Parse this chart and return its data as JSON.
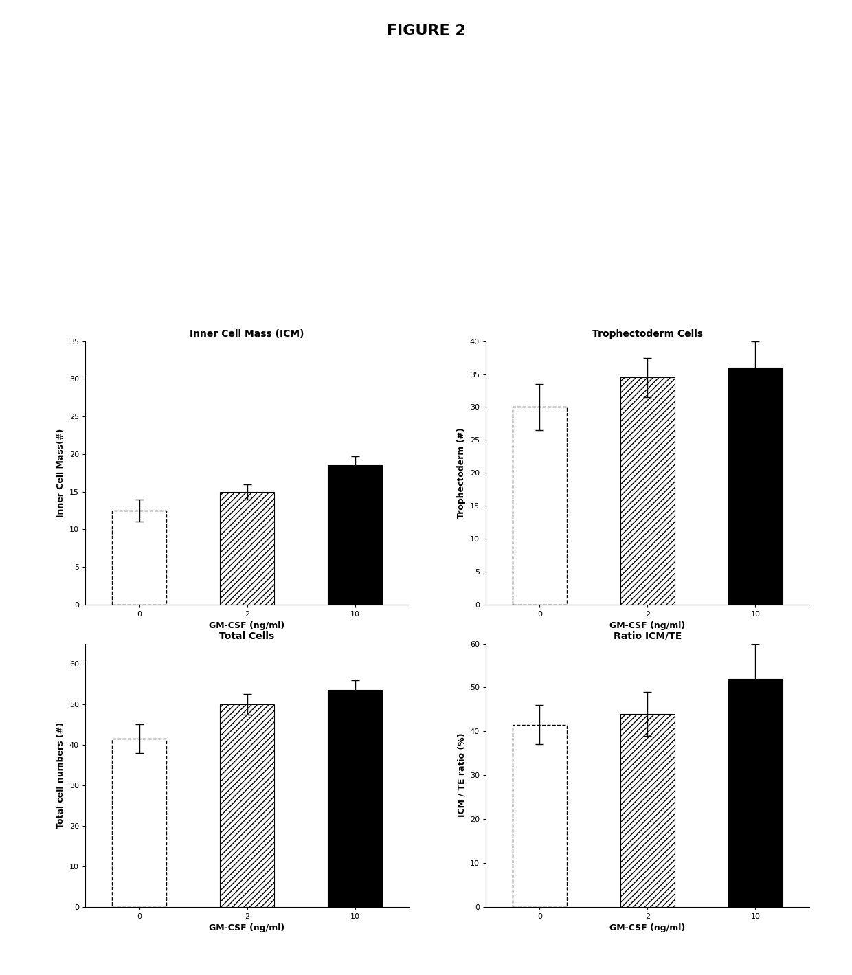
{
  "title": "FIGURE 2",
  "subplots": [
    {
      "title": "Inner Cell Mass (ICM)",
      "ylabel": "Inner Cell Mass(#)",
      "xlabel": "GM-CSF (ng/ml)",
      "categories": [
        "0",
        "2",
        "10"
      ],
      "values": [
        12.5,
        15.0,
        18.5
      ],
      "errors": [
        1.5,
        1.0,
        1.2
      ],
      "ylim": [
        0,
        35
      ],
      "yticks": [
        0,
        5,
        10,
        15,
        20,
        25,
        30,
        35
      ]
    },
    {
      "title": "Trophectoderm Cells",
      "ylabel": "Trophectoderm (#)",
      "xlabel": "GM-CSF (ng/ml)",
      "categories": [
        "0",
        "2",
        "10"
      ],
      "values": [
        30.0,
        34.5,
        36.0
      ],
      "errors": [
        3.5,
        3.0,
        4.0
      ],
      "ylim": [
        0,
        40
      ],
      "yticks": [
        0,
        5,
        10,
        15,
        20,
        25,
        30,
        35,
        40
      ]
    },
    {
      "title": "Total Cells",
      "ylabel": "Total cell numbers (#)",
      "xlabel": "GM-CSF (ng/ml)",
      "categories": [
        "0",
        "2",
        "10"
      ],
      "values": [
        41.5,
        50.0,
        53.5
      ],
      "errors": [
        3.5,
        2.5,
        2.5
      ],
      "ylim": [
        0,
        65
      ],
      "yticks": [
        0,
        10,
        20,
        30,
        40,
        50,
        60
      ]
    },
    {
      "title": "Ratio ICM/TE",
      "ylabel": "ICM / TE ratio (%)",
      "xlabel": "GM-CSF (ng/ml)",
      "categories": [
        "0",
        "2",
        "10"
      ],
      "values": [
        41.5,
        44.0,
        52.0
      ],
      "errors": [
        4.5,
        5.0,
        8.0
      ],
      "ylim": [
        0,
        60
      ],
      "yticks": [
        0,
        10,
        20,
        30,
        40,
        50,
        60
      ]
    }
  ],
  "bar_hatches": [
    "",
    "////",
    ""
  ],
  "bar_facecolors": [
    "white",
    "white",
    "black"
  ],
  "bar_linestyles": [
    "dashed",
    "solid",
    "solid"
  ],
  "bar_edgecolor": "black",
  "bar_width": 0.5,
  "figure_facecolor": "white",
  "title_fontsize": 16,
  "axis_title_fontsize": 10,
  "axis_label_fontsize": 9,
  "tick_fontsize": 8
}
